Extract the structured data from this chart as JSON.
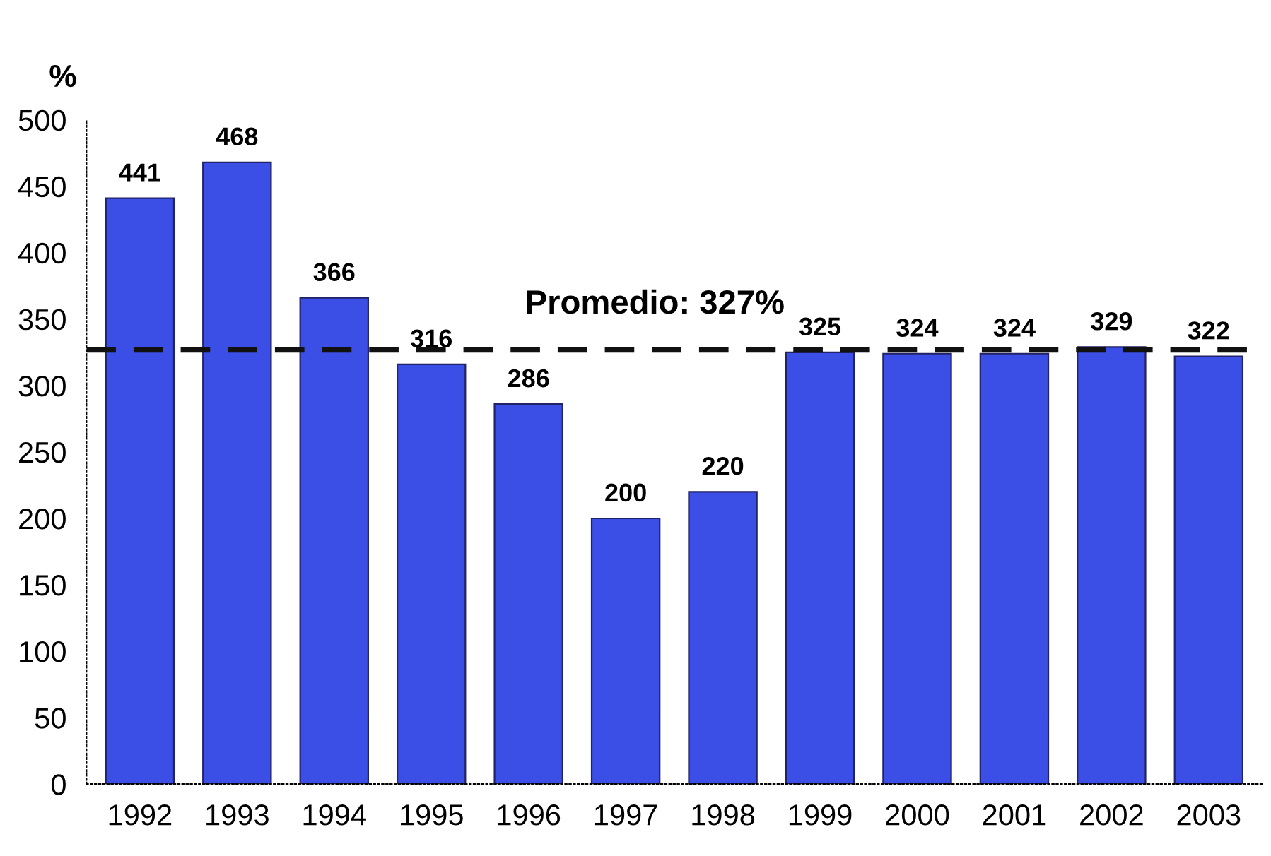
{
  "chart_data": {
    "type": "bar",
    "ylabel": "%",
    "categories": [
      "1992",
      "1993",
      "1994",
      "1995",
      "1996",
      "1997",
      "1998",
      "1999",
      "2000",
      "2001",
      "2002",
      "2003"
    ],
    "values": [
      441,
      468,
      366,
      316,
      286,
      200,
      220,
      325,
      324,
      324,
      329,
      322
    ],
    "color": "#3b4fe6",
    "ylim": [
      0,
      500
    ],
    "yticks": [
      0,
      50,
      100,
      150,
      200,
      250,
      300,
      350,
      400,
      450,
      500
    ],
    "data_labels": true,
    "grid": false,
    "legend": false,
    "ref_lines": [
      {
        "axis": "y",
        "value": 327,
        "label": "Promedio: 327%",
        "color": "#111111",
        "line_style": "dashed"
      }
    ]
  }
}
